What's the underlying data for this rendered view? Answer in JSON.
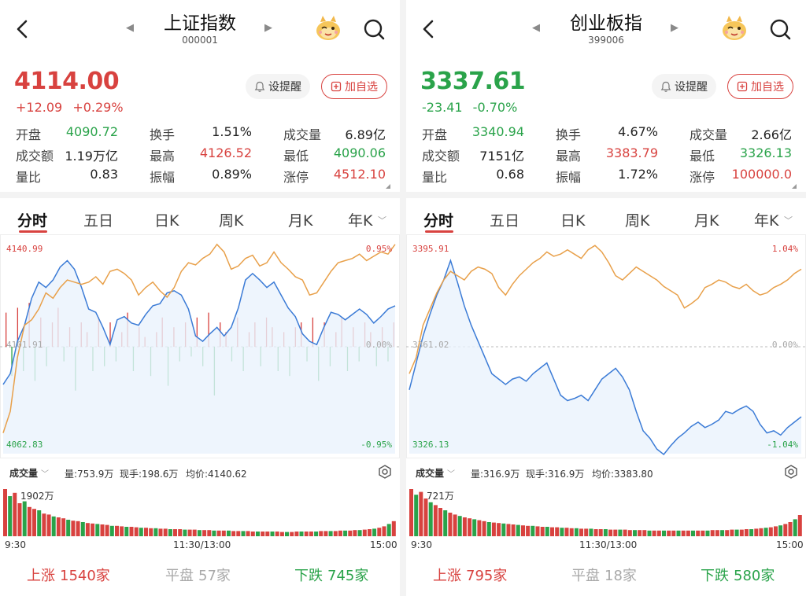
{
  "panels": [
    {
      "title": "上证指数",
      "code": "000001",
      "price": "4114.00",
      "change": "+12.09",
      "change_pct": "+0.29%",
      "price_color": "#d8423f",
      "alert_label": "设提醒",
      "watch_label": "加自选",
      "stats": [
        [
          {
            "label": "开盘",
            "value": "4090.72",
            "color": "#2aa34a"
          },
          {
            "label": "换手",
            "value": "1.51%",
            "color": "#222"
          },
          {
            "label": "成交量",
            "value": "6.89亿",
            "color": "#222"
          }
        ],
        [
          {
            "label": "成交额",
            "value": "1.19万亿",
            "color": "#222"
          },
          {
            "label": "最高",
            "value": "4126.52",
            "color": "#d8423f"
          },
          {
            "label": "最低",
            "value": "4090.06",
            "color": "#2aa34a"
          }
        ],
        [
          {
            "label": "量比",
            "value": "0.83",
            "color": "#222"
          },
          {
            "label": "振幅",
            "value": "0.89%",
            "color": "#222"
          },
          {
            "label": "涨停",
            "value": "4512.10",
            "color": "#d8423f"
          }
        ]
      ],
      "tabs": [
        "分时",
        "五日",
        "日K",
        "周K",
        "月K",
        "年K"
      ],
      "chart": {
        "top_left": "4140.99",
        "top_right": "0.95%",
        "mid_left": "4101.91",
        "mid_right": "0.00%",
        "bottom_left": "4062.83",
        "bottom_right": "-0.95%",
        "up_color": "#d8423f",
        "down_color": "#2aa34a",
        "orange_line": [
          -0.8,
          -0.6,
          -0.1,
          0.2,
          0.25,
          0.35,
          0.5,
          0.45,
          0.55,
          0.62,
          0.6,
          0.58,
          0.6,
          0.65,
          0.58,
          0.7,
          0.72,
          0.68,
          0.62,
          0.48,
          0.55,
          0.6,
          0.52,
          0.46,
          0.55,
          0.7,
          0.78,
          0.76,
          0.82,
          0.86,
          0.95,
          0.88,
          0.72,
          0.75,
          0.82,
          0.85,
          0.75,
          0.78,
          0.88,
          0.78,
          0.72,
          0.65,
          0.62,
          0.48,
          0.5,
          0.6,
          0.7,
          0.78,
          0.8,
          0.82,
          0.86,
          0.8,
          0.84,
          0.88,
          0.86,
          0.95
        ],
        "blue_line": [
          -0.35,
          -0.25,
          0.05,
          0.2,
          0.45,
          0.6,
          0.55,
          0.62,
          0.74,
          0.8,
          0.72,
          0.55,
          0.35,
          0.32,
          0.18,
          0.02,
          0.25,
          0.28,
          0.22,
          0.2,
          0.3,
          0.38,
          0.4,
          0.5,
          0.52,
          0.48,
          0.35,
          0.1,
          0.05,
          0.12,
          0.18,
          0.1,
          0.18,
          0.36,
          0.62,
          0.68,
          0.62,
          0.55,
          0.6,
          0.48,
          0.36,
          0.28,
          0.12,
          0.05,
          0.02,
          0.18,
          0.32,
          0.3,
          0.25,
          0.3,
          0.35,
          0.3,
          0.22,
          0.28,
          0.35,
          0.38
        ],
        "dev_bars": [
          0.7,
          -0.6,
          0.8,
          -0.5,
          0.9,
          -0.7,
          0.6,
          -0.4,
          0.5,
          0.8,
          -0.3,
          0.4,
          -0.9,
          0.5,
          0.3,
          -0.5,
          0.6,
          -0.4,
          0.5,
          -0.3,
          0.3,
          0.7,
          -0.5,
          0.4,
          0.2,
          -0.6,
          0.3,
          0.6,
          -0.8,
          0.4,
          -0.3,
          0.5,
          -0.2,
          0.6,
          -0.4,
          0.7,
          -1.0,
          0.5,
          0.3,
          -0.3,
          0.6,
          -0.5,
          0.3,
          0.5,
          -0.4,
          0.6,
          0.4,
          -0.5,
          0.3,
          -0.6,
          0.4,
          0.5,
          -0.3,
          0.6,
          -0.7,
          0.5,
          -0.4,
          0.3,
          0.6,
          -0.5,
          0.4,
          -0.3,
          0.5,
          0.3,
          -0.4,
          0.4,
          -0.3,
          0.5
        ]
      },
      "volume_header": {
        "dropdown": "成交量",
        "vol": "量:753.9万",
        "hand": "现手:198.6万",
        "avg": "均价:4140.62"
      },
      "volume_max": "1902万",
      "volume_bars": [
        1.0,
        0.85,
        0.92,
        0.7,
        0.74,
        0.62,
        0.58,
        0.55,
        0.48,
        0.46,
        0.42,
        0.4,
        0.38,
        0.35,
        0.33,
        0.32,
        0.3,
        0.28,
        0.27,
        0.26,
        0.25,
        0.24,
        0.22,
        0.22,
        0.21,
        0.2,
        0.2,
        0.19,
        0.18,
        0.18,
        0.17,
        0.17,
        0.16,
        0.16,
        0.15,
        0.15,
        0.15,
        0.14,
        0.14,
        0.14,
        0.13,
        0.13,
        0.13,
        0.12,
        0.12,
        0.12,
        0.12,
        0.11,
        0.11,
        0.11,
        0.11,
        0.1,
        0.1,
        0.1,
        0.1,
        0.1,
        0.1,
        0.09,
        0.09,
        0.09,
        0.1,
        0.1,
        0.1,
        0.1,
        0.1,
        0.11,
        0.11,
        0.11,
        0.11,
        0.12,
        0.12,
        0.12,
        0.13,
        0.13,
        0.14,
        0.15,
        0.16,
        0.18,
        0.21,
        0.26,
        0.32
      ],
      "time_labels": [
        "9:30",
        "11:30/13:00",
        "15:00"
      ],
      "breadth": {
        "up_label": "上涨",
        "up_count": "1540家",
        "flat_label": "平盘",
        "flat_count": "57家",
        "down_label": "下跌",
        "down_count": "745家"
      }
    },
    {
      "title": "创业板指",
      "code": "399006",
      "price": "3337.61",
      "change": "-23.41",
      "change_pct": "-0.70%",
      "price_color": "#2aa34a",
      "alert_label": "设提醒",
      "watch_label": "加自选",
      "stats": [
        [
          {
            "label": "开盘",
            "value": "3340.94",
            "color": "#2aa34a"
          },
          {
            "label": "换手",
            "value": "4.67%",
            "color": "#222"
          },
          {
            "label": "成交量",
            "value": "2.66亿",
            "color": "#222"
          }
        ],
        [
          {
            "label": "成交额",
            "value": "7151亿",
            "color": "#222"
          },
          {
            "label": "最高",
            "value": "3383.79",
            "color": "#d8423f"
          },
          {
            "label": "最低",
            "value": "3326.13",
            "color": "#2aa34a"
          }
        ],
        [
          {
            "label": "量比",
            "value": "0.68",
            "color": "#222"
          },
          {
            "label": "振幅",
            "value": "1.72%",
            "color": "#222"
          },
          {
            "label": "涨停",
            "value": "100000.0",
            "color": "#d8423f"
          }
        ]
      ],
      "tabs": [
        "分时",
        "五日",
        "日K",
        "周K",
        "月K",
        "年K"
      ],
      "chart": {
        "top_left": "3395.91",
        "top_right": "1.04%",
        "mid_left": "3361.02",
        "mid_right": "0.00%",
        "bottom_left": "3326.13",
        "bottom_right": "-1.04%",
        "up_color": "#d8423f",
        "down_color": "#2aa34a",
        "orange_line": [
          -0.25,
          -0.1,
          0.2,
          0.35,
          0.5,
          0.62,
          0.7,
          0.66,
          0.62,
          0.7,
          0.74,
          0.72,
          0.68,
          0.55,
          0.48,
          0.58,
          0.66,
          0.72,
          0.78,
          0.82,
          0.88,
          0.84,
          0.86,
          0.9,
          0.86,
          0.82,
          0.9,
          0.94,
          0.88,
          0.78,
          0.66,
          0.62,
          0.68,
          0.74,
          0.7,
          0.66,
          0.62,
          0.56,
          0.52,
          0.48,
          0.36,
          0.4,
          0.45,
          0.55,
          0.58,
          0.62,
          0.6,
          0.56,
          0.54,
          0.58,
          0.52,
          0.48,
          0.5,
          0.55,
          0.58,
          0.62,
          0.68,
          0.72
        ],
        "blue_line": [
          -0.4,
          -0.15,
          0.1,
          0.3,
          0.48,
          0.62,
          0.8,
          0.6,
          0.38,
          0.2,
          0.05,
          -0.1,
          -0.25,
          -0.3,
          -0.35,
          -0.3,
          -0.28,
          -0.32,
          -0.25,
          -0.2,
          -0.15,
          -0.3,
          -0.45,
          -0.5,
          -0.48,
          -0.45,
          -0.5,
          -0.4,
          -0.3,
          -0.25,
          -0.2,
          -0.28,
          -0.4,
          -0.6,
          -0.78,
          -0.85,
          -0.95,
          -1.0,
          -0.92,
          -0.85,
          -0.8,
          -0.74,
          -0.7,
          -0.75,
          -0.72,
          -0.68,
          -0.6,
          -0.62,
          -0.58,
          -0.55,
          -0.6,
          -0.72,
          -0.8,
          -0.78,
          -0.82,
          -0.75,
          -0.7,
          -0.65
        ],
        "dev_bars": []
      },
      "volume_header": {
        "dropdown": "成交量",
        "vol": "量:316.9万",
        "hand": "现手:316.9万",
        "avg": "均价:3383.80"
      },
      "volume_max": "721万",
      "volume_bars": [
        1.0,
        0.88,
        0.94,
        0.8,
        0.72,
        0.66,
        0.6,
        0.55,
        0.5,
        0.46,
        0.43,
        0.4,
        0.38,
        0.36,
        0.34,
        0.32,
        0.3,
        0.29,
        0.28,
        0.27,
        0.26,
        0.25,
        0.24,
        0.23,
        0.22,
        0.22,
        0.21,
        0.2,
        0.2,
        0.19,
        0.19,
        0.18,
        0.18,
        0.17,
        0.17,
        0.16,
        0.16,
        0.16,
        0.15,
        0.15,
        0.15,
        0.14,
        0.14,
        0.14,
        0.14,
        0.13,
        0.13,
        0.13,
        0.13,
        0.12,
        0.12,
        0.12,
        0.12,
        0.12,
        0.12,
        0.12,
        0.12,
        0.12,
        0.12,
        0.12,
        0.12,
        0.12,
        0.13,
        0.13,
        0.13,
        0.13,
        0.14,
        0.14,
        0.14,
        0.15,
        0.15,
        0.16,
        0.17,
        0.18,
        0.19,
        0.21,
        0.23,
        0.26,
        0.3,
        0.36,
        0.45
      ],
      "time_labels": [
        "9:30",
        "11:30/13:00",
        "15:00"
      ],
      "breadth": {
        "up_label": "上涨",
        "up_count": "795家",
        "flat_label": "平盘",
        "flat_count": "18家",
        "down_label": "下跌",
        "down_count": "580家"
      }
    }
  ],
  "icons": {
    "back": "back-arrow-icon",
    "prev": "prev-triangle-icon",
    "next": "next-triangle-icon",
    "mascot": "mascot-icon",
    "search": "search-icon",
    "bell": "bell-icon",
    "plus": "plus-square-icon",
    "gear": "settings-icon"
  },
  "colors": {
    "up": "#d8423f",
    "down": "#2aa34a",
    "orange": "#e8a04a",
    "blue": "#3b7bd6",
    "blue_fill": "#eaf2fc"
  }
}
